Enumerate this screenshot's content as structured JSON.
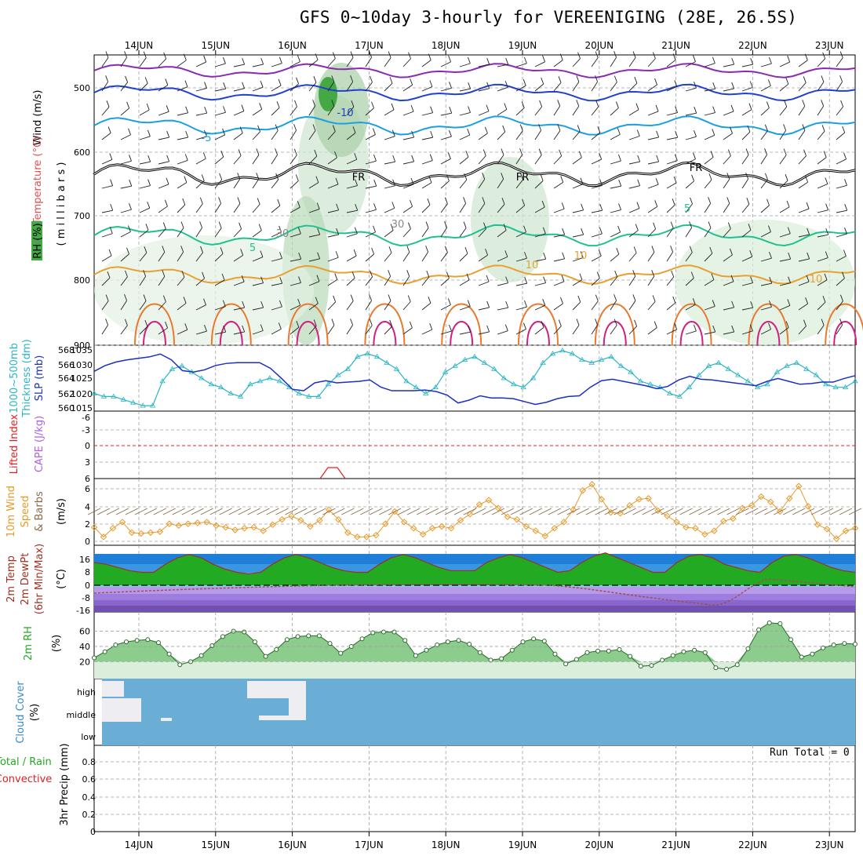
{
  "title": "GFS 0~10day 3-hourly for VEREENIGING (28E, 26.5S)",
  "dates": [
    "14JUN",
    "15JUN",
    "16JUN",
    "17JUN",
    "18JUN",
    "19JUN",
    "20JUN",
    "21JUN",
    "22JUN",
    "23JUN"
  ],
  "colors": {
    "frame": "#000000",
    "grid": "#a0a0a0",
    "cloud": "#6aaed6",
    "slp": "#2ab5c4",
    "thick": "#1b2fc0",
    "wind": "#e89a2a",
    "barb": "#8a6a4a",
    "rh": "#2fbf2f",
    "precipRain": "#2fbf2f",
    "precipConv": "#e02020"
  },
  "panels": {
    "upper": {
      "axis_label": [
        "Wind (m/s)",
        "Temperature (°C)",
        "RH (%)",
        "( m i l l i b a r s )"
      ],
      "ticks": [
        "500",
        "600",
        "700",
        "800",
        "900"
      ],
      "contour_labels": [
        "-10",
        "-5",
        "FR",
        "FR",
        "FR",
        "5",
        "5",
        "10",
        "10",
        "10",
        "30",
        "30"
      ]
    },
    "thickness": {
      "axis_label": [
        "1000~500mb",
        "Thickness (dm)",
        "SLP (mb)"
      ],
      "left_ticks": [
        "568",
        "566",
        "564",
        "562",
        "560"
      ],
      "right_ticks": [
        "1035",
        "1030",
        "1025",
        "1020",
        "1015"
      ]
    },
    "stability": {
      "axis_label": [
        "Lifted Index",
        "CAPE (J/kg)"
      ],
      "ticks": [
        "-6",
        "-3",
        "0",
        "3",
        "6"
      ]
    },
    "wind10m": {
      "axis_label": [
        "10m Wind",
        "Speed",
        "& Barbs",
        "(m/s)"
      ],
      "ticks": [
        "6",
        "4",
        "2",
        "0"
      ]
    },
    "temp2m": {
      "axis_label": [
        "2m Temp",
        "2m DewPt",
        "(6hr Min/Max)",
        "(°C)"
      ],
      "ticks": [
        "16",
        "8",
        "0",
        "-8",
        "-16"
      ]
    },
    "rh2m": {
      "axis_label": [
        "2m RH",
        "(%)"
      ],
      "ticks": [
        "60",
        "40",
        "20"
      ]
    },
    "cloud": {
      "axis_label": [
        "Cloud Cover",
        "(%)"
      ],
      "ticks": [
        "high",
        "middle",
        "low"
      ]
    },
    "precip": {
      "axis_label": [
        "Total / Rain",
        "Convective",
        "3hr Precip (mm)"
      ],
      "ticks": [
        "0.8",
        "0.6",
        "0.4",
        "0.2",
        "0"
      ],
      "run_total": "Run Total = 0"
    }
  },
  "chart_data": [
    {
      "type": "line",
      "name": "Mean Sea Level Pressure (mb)",
      "x_unit": "3-hourly steps from 13JUN 12Z",
      "values": [
        1020,
        1019,
        1019,
        1018,
        1017,
        1016,
        1016,
        1024,
        1028,
        1029,
        1027,
        1025,
        1023,
        1022,
        1020,
        1019,
        1023,
        1024,
        1025,
        1024,
        1022,
        1020,
        1019,
        1019,
        1023,
        1026,
        1028,
        1032,
        1033,
        1032,
        1030,
        1028,
        1024,
        1022,
        1020,
        1022,
        1027,
        1029,
        1031,
        1032,
        1030,
        1028,
        1025,
        1023,
        1022,
        1025,
        1030,
        1033,
        1034,
        1033,
        1031,
        1030,
        1031,
        1032,
        1029,
        1027,
        1024,
        1023,
        1022,
        1020,
        1019,
        1022,
        1026,
        1029,
        1030,
        1028,
        1026,
        1024,
        1022,
        1023,
        1027,
        1029,
        1030,
        1028,
        1026,
        1023,
        1022,
        1022,
        1024
      ]
    },
    {
      "type": "line",
      "name": "1000-500mb Thickness (dm)",
      "values": [
        565.2,
        566.0,
        566.5,
        566.8,
        567.0,
        567.2,
        567.6,
        566.8,
        565.3,
        565.1,
        565.4,
        566.0,
        566.3,
        566.4,
        566.4,
        566.4,
        565.6,
        564.2,
        562.7,
        562.5,
        563.6,
        563.9,
        563.6,
        563.7,
        563.8,
        564.0,
        563.0,
        562.5,
        562.5,
        562.5,
        562.6,
        562.4,
        561.9,
        560.8,
        561.2,
        561.8,
        561.5,
        561.5,
        561.4,
        561.0,
        560.6,
        560.9,
        561.4,
        561.7,
        561.8,
        563.0,
        563.9,
        564.1,
        563.8,
        563.5,
        563.2,
        562.8,
        563.1,
        564.0,
        564.5,
        564.1,
        564.0,
        563.8,
        563.6,
        563.4,
        563.2,
        563.8,
        564.2,
        563.8,
        563.4,
        563.5,
        563.7,
        563.7,
        564.2,
        564.6
      ]
    },
    {
      "type": "line",
      "name": "10m Wind Speed (m/s)",
      "values": [
        1.6,
        0.5,
        1.5,
        2.2,
        1.0,
        0.9,
        1.0,
        1.1,
        2.0,
        1.8,
        2.0,
        2.1,
        2.2,
        1.8,
        1.6,
        1.3,
        1.5,
        1.6,
        1.2,
        1.9,
        2.5,
        2.9,
        2.4,
        1.7,
        2.4,
        3.6,
        2.5,
        1.0,
        0.5,
        0.5,
        0.7,
        2.0,
        3.4,
        2.2,
        1.5,
        0.8,
        1.5,
        1.7,
        1.5,
        2.4,
        3.1,
        4.2,
        4.7,
        3.8,
        2.8,
        2.5,
        1.7,
        1.2,
        0.6,
        1.5,
        2.2,
        3.6,
        5.8,
        6.5,
        4.8,
        3.3,
        3.2,
        4.1,
        4.8,
        4.9,
        3.5,
        2.9,
        2.2,
        1.6,
        1.5,
        0.8,
        1.2,
        2.3,
        2.6,
        3.8,
        4.1,
        5.1,
        4.5,
        3.4,
        4.9,
        6.3,
        4.0,
        1.9,
        1.4,
        0.3,
        1.2,
        1.5
      ]
    },
    {
      "type": "line",
      "name": "2m RH (%)",
      "values": [
        25,
        33,
        42,
        46,
        48,
        49,
        45,
        30,
        16,
        20,
        28,
        41,
        53,
        60,
        59,
        46,
        27,
        36,
        49,
        53,
        54,
        54,
        44,
        31,
        40,
        50,
        58,
        59,
        59,
        48,
        28,
        35,
        42,
        46,
        48,
        43,
        32,
        22,
        24,
        35,
        46,
        50,
        47,
        30,
        17,
        23,
        32,
        34,
        34,
        36,
        27,
        14,
        15,
        22,
        28,
        33,
        35,
        32,
        12,
        10,
        16,
        37,
        62,
        71,
        70,
        49,
        26,
        30,
        38,
        42,
        44,
        43
      ]
    },
    {
      "type": "line",
      "name": "2m Temperature (°C)",
      "values": [
        14,
        13,
        11,
        9,
        8,
        8,
        13,
        17,
        19,
        17,
        13,
        10,
        8,
        7,
        8,
        13,
        17,
        19,
        17,
        14,
        11,
        9,
        8,
        8,
        13,
        17,
        19,
        17,
        14,
        11,
        9,
        9,
        9,
        14,
        17,
        19,
        17,
        14,
        11,
        8,
        9,
        14,
        18,
        20,
        17,
        14,
        11,
        8,
        8,
        14,
        18,
        19,
        17,
        13,
        11,
        9,
        8,
        14,
        18,
        19,
        17,
        14,
        11,
        9,
        8
      ]
    },
    {
      "type": "bar",
      "name": "3hr Precip (mm)",
      "values": [
        0,
        0,
        0,
        0,
        0,
        0,
        0,
        0,
        0,
        0
      ],
      "run_total": 0
    }
  ]
}
